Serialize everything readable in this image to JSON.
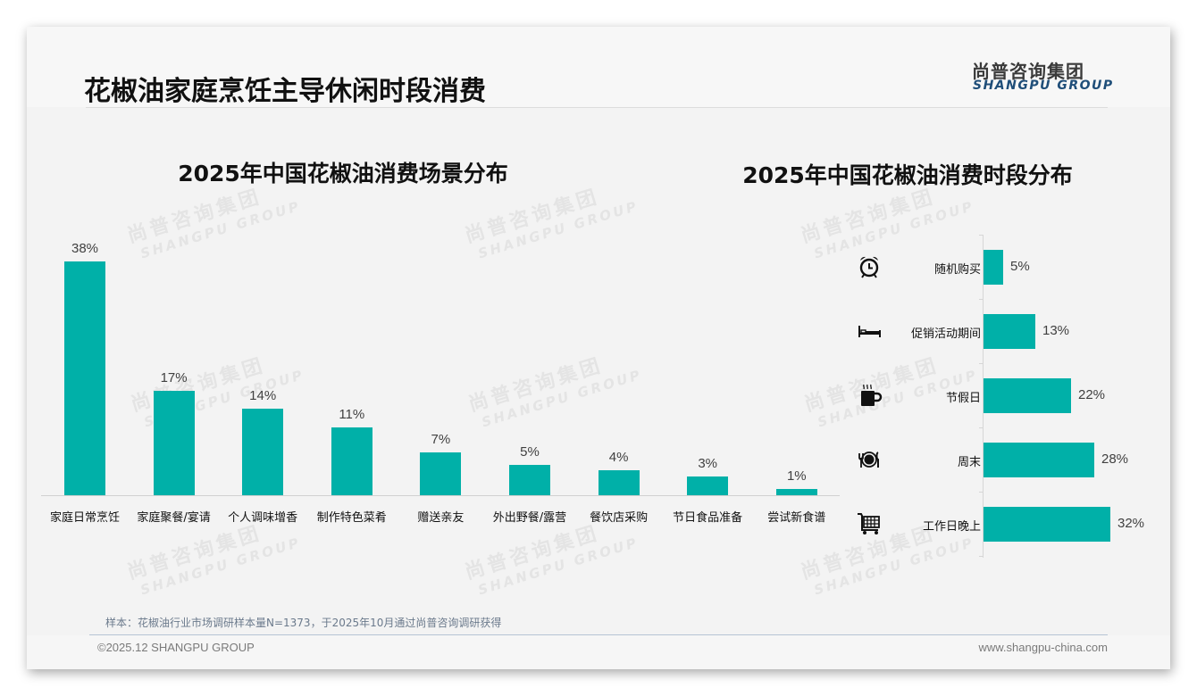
{
  "page": {
    "title": "花椒油家庭烹饪主导休闲时段消费",
    "logo_cn": "尚普咨询集团",
    "logo_en": "SHANGPU GROUP",
    "watermark_cn": "尚普咨询集团",
    "watermark_en": "SHANGPU GROUP",
    "footnote": "样本：花椒油行业市场调研样本量N=1373，于2025年10月通过尚普咨询调研获得",
    "copyright": "©2025.12 SHANGPU GROUP",
    "website": "www.shangpu-china.com",
    "accent_color": "#00b0a8"
  },
  "chart_data": [
    {
      "type": "bar",
      "title": "2025年中国花椒油消费场景分布",
      "xlabel": "",
      "ylabel": "",
      "categories": [
        "家庭日常烹饪",
        "家庭聚餐/宴请",
        "个人调味增香",
        "制作特色菜肴",
        "赠送亲友",
        "外出野餐/露营",
        "餐饮店采购",
        "节日食品准备",
        "尝试新食谱"
      ],
      "values": [
        38,
        17,
        14,
        11,
        7,
        5,
        4,
        3,
        1
      ],
      "labels": [
        "38%",
        "17%",
        "14%",
        "11%",
        "7%",
        "5%",
        "4%",
        "3%",
        "1%"
      ],
      "unit": "%",
      "ylim": [
        0,
        38
      ],
      "grid": false,
      "legend": "none",
      "color": "#00b0a8"
    },
    {
      "type": "bar",
      "orientation": "horizontal",
      "title": "2025年中国花椒油消费时段分布",
      "xlabel": "",
      "ylabel": "",
      "categories": [
        "随机购买",
        "促销活动期间",
        "节假日",
        "周末",
        "工作日晚上"
      ],
      "values": [
        5,
        13,
        22,
        28,
        32
      ],
      "labels": [
        "5%",
        "13%",
        "22%",
        "28%",
        "32%"
      ],
      "icons": [
        "alarm-clock-icon",
        "bed-icon",
        "hot-coffee-icon",
        "plate-cutlery-icon",
        "shopping-cart-icon"
      ],
      "unit": "%",
      "grid": false,
      "legend": "none",
      "color": "#00b0a8"
    }
  ]
}
